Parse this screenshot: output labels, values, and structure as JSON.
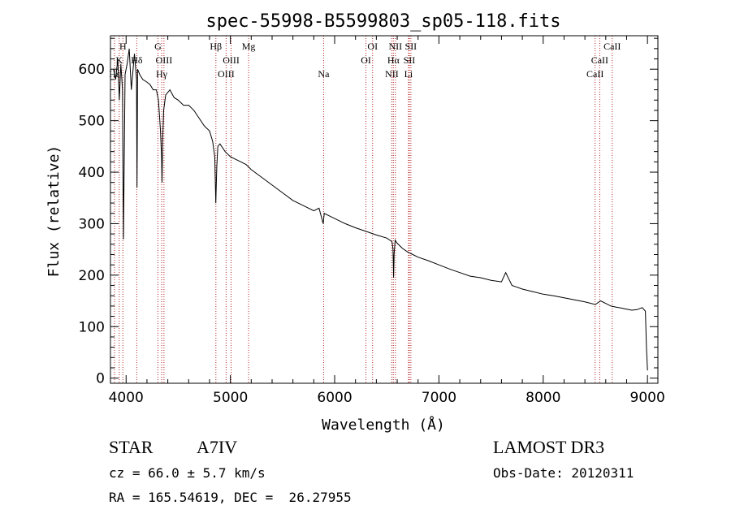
{
  "chart_data": {
    "type": "line",
    "title": "spec-55998-B5599803_sp05-118.fits",
    "xlabel": "Wavelength (Å)",
    "ylabel": "Flux (relative)",
    "xlim": [
      3850,
      9100
    ],
    "ylim": [
      -10,
      665
    ],
    "x_ticks": [
      4000,
      5000,
      6000,
      7000,
      8000,
      9000
    ],
    "x_tick_labels": [
      "4000",
      "5000",
      "6000",
      "7000",
      "8000",
      "9000"
    ],
    "y_ticks": [
      0,
      100,
      200,
      300,
      400,
      500,
      600
    ],
    "y_tick_labels": [
      "0",
      "100",
      "200",
      "300",
      "400",
      "500",
      "600"
    ],
    "series": [
      {
        "name": "flux",
        "x": [
          3880,
          3900,
          3920,
          3935,
          3950,
          3965,
          3975,
          3990,
          4010,
          4030,
          4050,
          4080,
          4100,
          4105,
          4110,
          4130,
          4160,
          4200,
          4230,
          4260,
          4290,
          4310,
          4330,
          4340,
          4345,
          4350,
          4360,
          4380,
          4420,
          4460,
          4500,
          4550,
          4600,
          4650,
          4700,
          4750,
          4800,
          4830,
          4850,
          4860,
          4870,
          4880,
          4900,
          4950,
          5000,
          5050,
          5100,
          5150,
          5200,
          5300,
          5400,
          5500,
          5600,
          5700,
          5800,
          5850,
          5890,
          5900,
          5950,
          6000,
          6100,
          6200,
          6300,
          6400,
          6500,
          6550,
          6560,
          6565,
          6570,
          6580,
          6600,
          6650,
          6700,
          6750,
          6800,
          6900,
          7000,
          7100,
          7200,
          7300,
          7400,
          7500,
          7600,
          7640,
          7700,
          7800,
          7900,
          8000,
          8100,
          8200,
          8300,
          8400,
          8500,
          8550,
          8600,
          8650,
          8700,
          8750,
          8800,
          8850,
          8900,
          8950,
          8980,
          8990,
          9000
        ],
        "values": [
          600,
          580,
          620,
          540,
          610,
          560,
          270,
          590,
          610,
          640,
          560,
          630,
          580,
          370,
          600,
          590,
          580,
          575,
          570,
          560,
          560,
          540,
          480,
          430,
          380,
          460,
          520,
          550,
          560,
          545,
          540,
          530,
          530,
          520,
          505,
          490,
          480,
          460,
          430,
          340,
          410,
          450,
          455,
          440,
          430,
          425,
          420,
          415,
          405,
          390,
          375,
          360,
          345,
          335,
          325,
          330,
          300,
          320,
          315,
          310,
          300,
          292,
          285,
          278,
          272,
          265,
          250,
          195,
          240,
          268,
          262,
          252,
          245,
          240,
          235,
          228,
          220,
          212,
          205,
          198,
          195,
          190,
          187,
          205,
          180,
          173,
          168,
          163,
          160,
          156,
          152,
          148,
          143,
          150,
          145,
          140,
          138,
          136,
          134,
          132,
          133,
          137,
          130,
          60,
          15
        ]
      }
    ],
    "lines": [
      {
        "name": "Hε",
        "wavelength": 3889,
        "label_row": 3
      },
      {
        "name": "K",
        "wavelength": 3934,
        "label_row": 2
      },
      {
        "name": "H",
        "wavelength": 3969,
        "label_row": 1
      },
      {
        "name": "Hδ",
        "wavelength": 4102,
        "label_row": 2
      },
      {
        "name": "G",
        "wavelength": 4305,
        "label_row": 1
      },
      {
        "name": "Hγ",
        "wavelength": 4341,
        "label_row": 3
      },
      {
        "name": "OIII",
        "wavelength": 4363,
        "label_row": 2
      },
      {
        "name": "Hβ",
        "wavelength": 4861,
        "label_row": 1
      },
      {
        "name": "OIII",
        "wavelength": 4959,
        "label_row": 3
      },
      {
        "name": "OIII",
        "wavelength": 5007,
        "label_row": 2
      },
      {
        "name": "Mg",
        "wavelength": 5175,
        "label_row": 1
      },
      {
        "name": "Na",
        "wavelength": 5894,
        "label_row": 3
      },
      {
        "name": "OI",
        "wavelength": 6300,
        "label_row": 2
      },
      {
        "name": "OI",
        "wavelength": 6364,
        "label_row": 1
      },
      {
        "name": "NII",
        "wavelength": 6548,
        "label_row": 3
      },
      {
        "name": "Hα",
        "wavelength": 6563,
        "label_row": 2
      },
      {
        "name": "NII",
        "wavelength": 6583,
        "label_row": 1
      },
      {
        "name": "Li",
        "wavelength": 6708,
        "label_row": 3
      },
      {
        "name": "SII",
        "wavelength": 6716,
        "label_row": 2
      },
      {
        "name": "SII",
        "wavelength": 6731,
        "label_row": 1
      },
      {
        "name": "CaII",
        "wavelength": 8498,
        "label_row": 3
      },
      {
        "name": "CaII",
        "wavelength": 8542,
        "label_row": 2
      },
      {
        "name": "CaII",
        "wavelength": 8662,
        "label_row": 1
      }
    ],
    "grid": false,
    "line_marker_color": "#b22222"
  },
  "info": {
    "object_class": "STAR",
    "subclass": "A7IV",
    "survey": "LAMOST DR3",
    "redshift": "cz = 66.0 ± 5.7 km/s",
    "obs_date": "Obs-Date: 20120311",
    "coords": "RA = 165.54619, DEC =  26.27955"
  }
}
